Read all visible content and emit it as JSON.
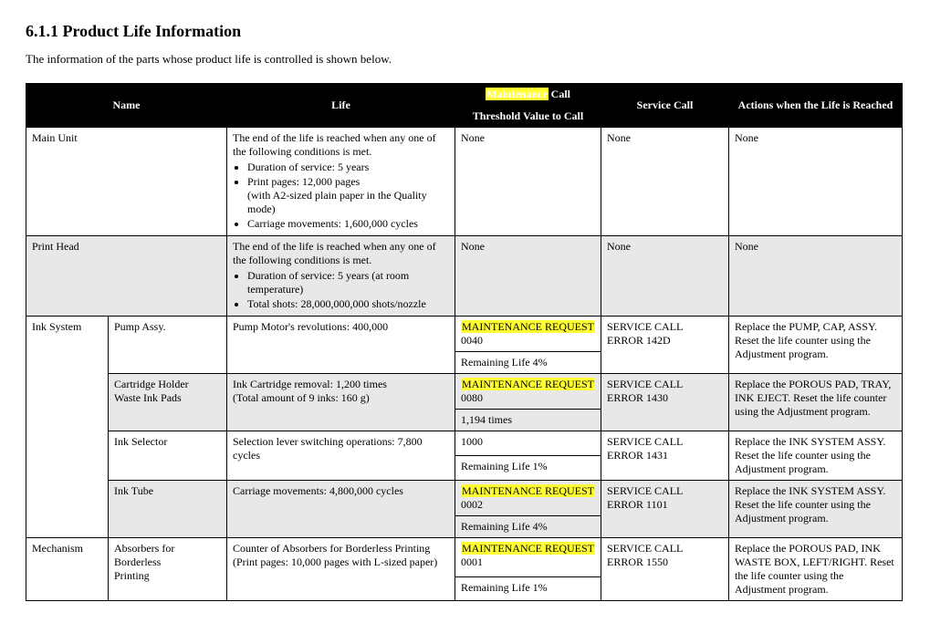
{
  "heading": "6.1.1  Product Life Information",
  "intro": "The information of the parts whose product life is controlled is shown below.",
  "headers": {
    "name": "Name",
    "life": "Life",
    "maint_pre": "Maintenance",
    "maint_post": " Call",
    "maint_sub": "Threshold Value to Call",
    "service": "Service Call",
    "actions": "Actions when the Life is Reached"
  },
  "rows": {
    "main_unit": {
      "name": "Main Unit",
      "life_intro": "The end of the life is reached when any one of the following conditions is met.",
      "life_b1": "Duration of service: 5 years",
      "life_b2": "Print pages: 12,000 pages",
      "life_b2_sub": "(with A2-sized plain paper in the Quality mode)",
      "life_b3": "Carriage movements: 1,600,000 cycles",
      "maint": "None",
      "service": "None",
      "actions": "None"
    },
    "print_head": {
      "name": "Print Head",
      "life_intro": "The end of the life is reached when any one of the following conditions is met.",
      "life_b1": "Duration of service: 5 years (at room temperature)",
      "life_b2": "Total shots: 28,000,000,000 shots/nozzle",
      "maint": "None",
      "service": "None",
      "actions": "None"
    },
    "ink_system": {
      "name": "Ink System"
    },
    "pump": {
      "name": "Pump Assy.",
      "life": "Pump Motor's revolutions: 400,000",
      "maint1_pre": "MAINTENANCE REQUEST",
      "maint1_code": "0040",
      "maint2": "Remaining Life 4%",
      "service_l1": "SERVICE CALL",
      "service_l2": "ERROR 142D",
      "actions": "Replace the PUMP, CAP, ASSY. Reset the life counter using the Adjustment program."
    },
    "cartridge": {
      "name_l1": "Cartridge Holder",
      "name_l2": "Waste Ink Pads",
      "life_l1": "Ink Cartridge removal: 1,200 times",
      "life_l2": "(Total amount of 9 inks: 160 g)",
      "maint1_pre": "MAINTENANCE REQUEST",
      "maint1_code": "0080",
      "maint2": "1,194 times",
      "service_l1": "SERVICE CALL",
      "service_l2": "ERROR 1430",
      "actions": "Replace the POROUS PAD, TRAY, INK EJECT. Reset the life counter using the Adjustment program."
    },
    "selector": {
      "name": "Ink Selector",
      "life": "Selection lever switching operations: 7,800 cycles",
      "maint1": "1000",
      "maint2": "Remaining Life 1%",
      "service_l1": "SERVICE CALL",
      "service_l2": "ERROR 1431",
      "actions": "Replace the INK SYSTEM ASSY. Reset the life counter using the Adjustment program."
    },
    "tube": {
      "name": "Ink Tube",
      "life": "Carriage movements: 4,800,000 cycles",
      "maint1_pre": "MAINTENANCE REQUEST",
      "maint1_code": "0002",
      "maint2": "Remaining Life 4%",
      "service_l1": "SERVICE CALL",
      "service_l2": "ERROR 1101",
      "actions": "Replace the INK SYSTEM ASSY. Reset the life counter using the Adjustment program."
    },
    "mechanism": {
      "name": "Mechanism"
    },
    "absorber": {
      "name_l1": "Absorbers for Borderless",
      "name_l2": "Printing",
      "life_l1": "Counter of Absorbers for Borderless Printing",
      "life_l2": "(Print pages: 10,000 pages with L-sized paper)",
      "maint1_pre": "MAINTENANCE REQUEST",
      "maint1_code": "0001",
      "maint2": "Remaining Life 1%",
      "service_l1": "SERVICE CALL",
      "service_l2": "ERROR 1550",
      "actions": "Replace the POROUS PAD, INK WASTE BOX, LEFT/RIGHT. Reset the life counter using the Adjustment program."
    }
  }
}
